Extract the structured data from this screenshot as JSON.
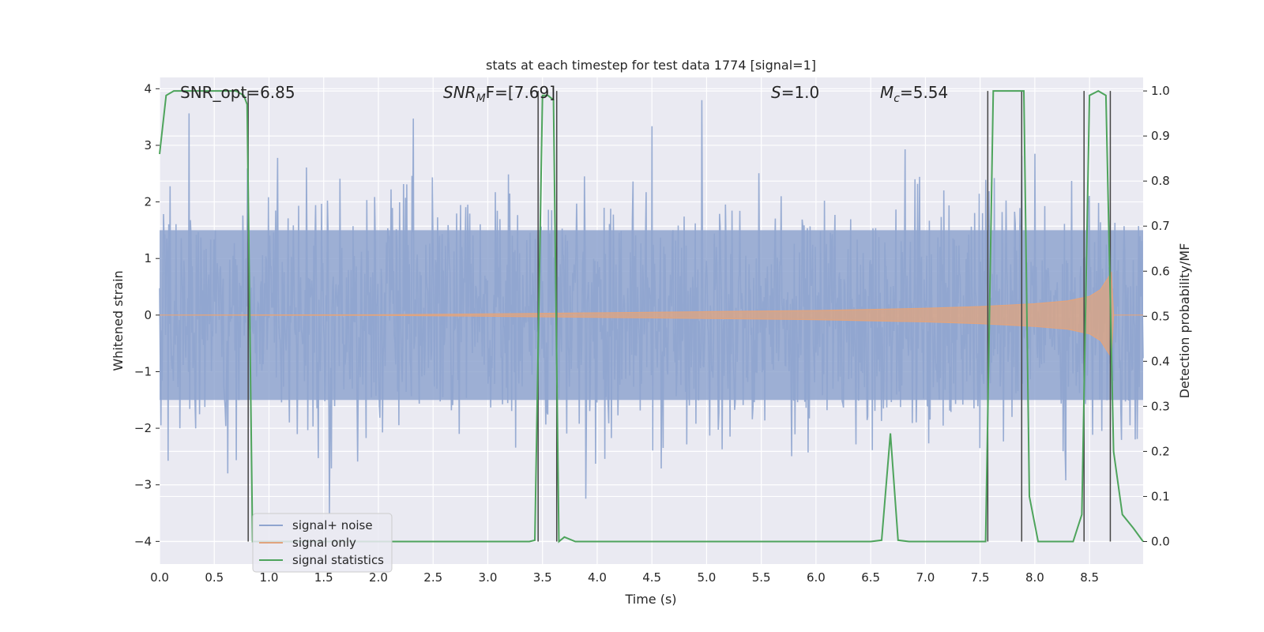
{
  "chart_data": {
    "type": "line",
    "title": "stats at each timestep for test data 1774 [signal=1]",
    "xlabel": "Time (s)",
    "ylabel_left": "Whitened strain",
    "ylabel_right": "Detection probability/MF",
    "xlim": [
      0.0,
      8.99
    ],
    "ylim_left": [
      -4.4,
      4.2
    ],
    "ylim_right": [
      -0.05,
      1.03
    ],
    "x_ticks": [
      "0.0",
      "0.5",
      "1.0",
      "1.5",
      "2.0",
      "2.5",
      "3.0",
      "3.5",
      "4.0",
      "4.5",
      "5.0",
      "5.5",
      "6.0",
      "6.5",
      "7.0",
      "7.5",
      "8.0",
      "8.5"
    ],
    "y_ticks_left": [
      "4",
      "3",
      "2",
      "1",
      "0",
      "−1",
      "−2",
      "−3",
      "−4"
    ],
    "y_ticks_right": [
      "1.0",
      "0.9",
      "0.8",
      "0.7",
      "0.6",
      "0.5",
      "0.4",
      "0.3",
      "0.2",
      "0.1",
      "0.0"
    ],
    "grid": true,
    "annotations": [
      {
        "name": "snr-opt",
        "text": "SNR_opt=6.85"
      },
      {
        "name": "snr-mf",
        "text": "SNR_MF=[7.69]",
        "base": "SNR",
        "sub": "M",
        "rest": "F=[7.69]"
      },
      {
        "name": "s-value",
        "text": "S=1.0",
        "base": "S",
        "rest": "=1.0"
      },
      {
        "name": "mc-value",
        "text": "M_c=5.54",
        "base": "M",
        "sub": "c",
        "rest": "=5.54"
      }
    ],
    "legend": {
      "placement": "lower-left",
      "entries": [
        {
          "label": "signal+ noise",
          "color": "#8fa5cf"
        },
        {
          "label": "signal only",
          "color": "#e1a47e"
        },
        {
          "label": "signal statistics",
          "color": "#4ea45c"
        }
      ]
    },
    "series": [
      {
        "name": "signal statistics",
        "axis": "right",
        "color": "#4ea45c",
        "x": [
          0.0,
          0.06,
          0.13,
          0.3,
          0.5,
          0.7,
          0.77,
          0.8,
          0.85,
          0.88,
          3.38,
          3.43,
          3.5,
          3.55,
          3.6,
          3.65,
          3.7,
          3.8,
          6.5,
          6.6,
          6.68,
          6.75,
          6.85,
          7.55,
          7.62,
          7.7,
          7.8,
          7.9,
          7.95,
          8.03,
          8.35,
          8.43,
          8.5,
          8.58,
          8.65,
          8.72,
          8.8,
          8.9,
          8.99
        ],
        "y": [
          0.86,
          0.99,
          1.0,
          1.0,
          1.0,
          1.0,
          0.99,
          0.97,
          0.0,
          0.0,
          0.0,
          0.003,
          0.99,
          0.99,
          0.98,
          0.0,
          0.01,
          0.0,
          0.0,
          0.003,
          0.24,
          0.003,
          0.0,
          0.0,
          1.0,
          1.0,
          1.0,
          1.0,
          0.1,
          0.0,
          0.0,
          0.06,
          0.99,
          1.0,
          0.99,
          0.2,
          0.06,
          0.03,
          0.0
        ]
      },
      {
        "name": "signal only",
        "axis": "left",
        "color": "#e1a47e",
        "envelope_x": [
          0.0,
          2.0,
          3.0,
          4.0,
          5.0,
          6.0,
          6.5,
          7.0,
          7.5,
          8.0,
          8.3,
          8.5,
          8.6,
          8.65,
          8.7,
          8.72,
          8.99
        ],
        "envelope_y": [
          0.0,
          0.005,
          0.02,
          0.04,
          0.06,
          0.08,
          0.1,
          0.12,
          0.15,
          0.2,
          0.25,
          0.33,
          0.45,
          0.6,
          0.75,
          0.0,
          0.0
        ]
      },
      {
        "name": "signal+ noise",
        "axis": "left",
        "color": "#8fa5cf",
        "type": "noise",
        "range": [
          -3.5,
          3.8
        ],
        "typical_band": [
          -1.5,
          1.5
        ]
      }
    ],
    "vertical_markers_x": [
      0.81,
      3.46,
      3.63,
      7.57,
      7.88,
      8.45,
      8.69
    ]
  }
}
